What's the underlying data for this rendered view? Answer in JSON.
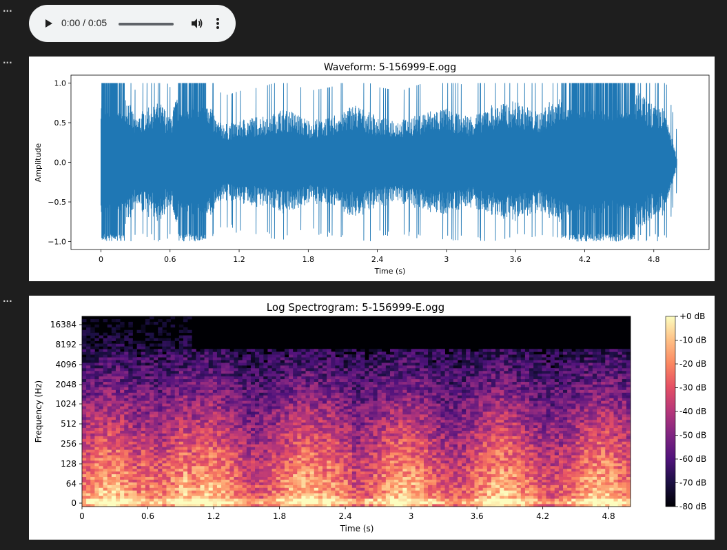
{
  "cells": [
    {
      "dots": "···"
    },
    {
      "dots": "···"
    },
    {
      "dots": "···"
    }
  ],
  "audio_player": {
    "time": "0:00 / 0:05",
    "progress": 0,
    "icons": [
      "play-icon",
      "volume-icon",
      "more-options-icon"
    ]
  },
  "waveform": {
    "title": "Waveform: 5-156999-E.ogg",
    "xlabel": "Time (s)",
    "ylabel": "Amplitude",
    "xticks": [
      "0",
      "0.6",
      "1.2",
      "1.8",
      "2.4",
      "3",
      "3.6",
      "4.2",
      "4.8"
    ],
    "yticks": [
      "1.0",
      "0.5",
      "0.0",
      "−0.5",
      "−1.0"
    ],
    "color": "#1f77b4"
  },
  "spectrogram": {
    "title": "Log Spectrogram: 5-156999-E.ogg",
    "xlabel": "Time (s)",
    "ylabel": "Frequency (Hz)",
    "xticks": [
      "0",
      "0.6",
      "1.2",
      "1.8",
      "2.4",
      "3",
      "3.6",
      "4.2",
      "4.8"
    ],
    "yticks": [
      "16384",
      "8192",
      "4096",
      "2048",
      "1024",
      "512",
      "256",
      "128",
      "64",
      "0"
    ],
    "colorbar_ticks": [
      "+0 dB",
      "-10 dB",
      "-20 dB",
      "-30 dB",
      "-40 dB",
      "-50 dB",
      "-60 dB",
      "-70 dB",
      "-80 dB"
    ],
    "colormap": "magma"
  },
  "chart_data": [
    {
      "type": "line",
      "title": "Waveform: 5-156999-E.ogg",
      "xlabel": "Time (s)",
      "ylabel": "Amplitude",
      "xlim": [
        -0.26,
        5.28
      ],
      "ylim": [
        -1.1,
        1.1
      ],
      "duration": 5.0,
      "envelope": {
        "t": [
          0.0,
          0.1,
          0.2,
          0.3,
          0.4,
          0.5,
          0.6,
          0.7,
          0.8,
          0.9,
          1.0,
          1.1,
          1.2,
          1.4,
          1.6,
          1.8,
          2.0,
          2.2,
          2.4,
          2.6,
          2.8,
          3.0,
          3.2,
          3.4,
          3.6,
          3.8,
          4.0,
          4.2,
          4.4,
          4.6,
          4.8,
          4.9,
          5.0
        ],
        "amp": [
          1.0,
          1.0,
          1.0,
          0.55,
          0.75,
          0.8,
          0.6,
          1.0,
          1.0,
          1.0,
          0.55,
          0.5,
          0.55,
          0.6,
          0.7,
          0.55,
          0.6,
          0.75,
          0.6,
          0.55,
          0.65,
          0.7,
          0.6,
          0.75,
          0.8,
          0.65,
          0.95,
          1.0,
          0.95,
          1.0,
          0.75,
          0.7,
          0.05
        ]
      }
    },
    {
      "type": "heatmap",
      "title": "Log Spectrogram: 5-156999-E.ogg",
      "xlabel": "Time (s)",
      "ylabel": "Frequency (Hz)",
      "xlim": [
        0,
        5.0
      ],
      "yscale": "log",
      "ylim_hz": [
        0,
        22050
      ],
      "zlim_db": [
        -80,
        0
      ],
      "colorbar_label_ticks": [
        0,
        -10,
        -20,
        -30,
        -40,
        -50,
        -60,
        -70,
        -80
      ]
    }
  ]
}
